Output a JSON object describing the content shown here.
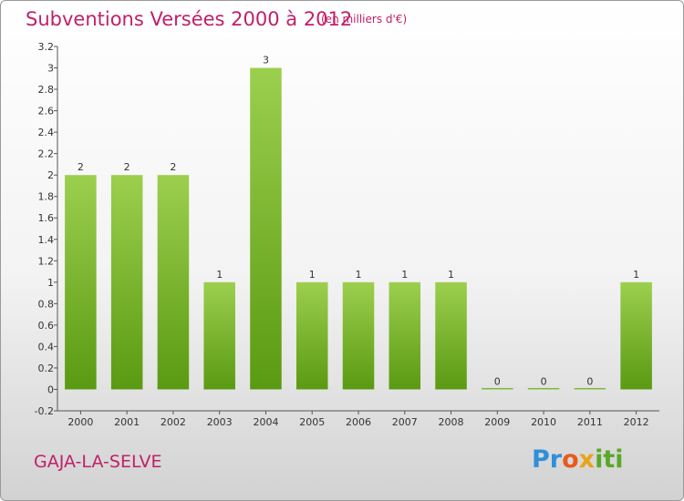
{
  "page": {
    "title": "Subventions Versées 2000 à 2012",
    "unit_note": "(en milliers d'€)",
    "commune": "GAJA-LA-SELVE",
    "logo": {
      "p": "Pr",
      "o": "o",
      "x": "x",
      "iti": "iti"
    }
  },
  "chart_data": {
    "type": "bar",
    "title": "Subventions Versées 2000 à 2012",
    "subtitle": "(en milliers d'€)",
    "categories": [
      "2000",
      "2001",
      "2002",
      "2003",
      "2004",
      "2005",
      "2006",
      "2007",
      "2008",
      "2009",
      "2010",
      "2011",
      "2012"
    ],
    "values": [
      2,
      2,
      2,
      1,
      3,
      1,
      1,
      1,
      1,
      0,
      0,
      0,
      1
    ],
    "data_labels": [
      "2",
      "2",
      "2",
      "1",
      "3",
      "1",
      "1",
      "1",
      "1",
      "0",
      "0",
      "0",
      "1"
    ],
    "ylim": [
      -0.2,
      3.2
    ],
    "yticks": [
      -0.2,
      0,
      0.2,
      0.4,
      0.6,
      0.8,
      1,
      1.2,
      1.4,
      1.6,
      1.8,
      2,
      2.2,
      2.4,
      2.6,
      2.8,
      3,
      3.2
    ],
    "ytick_labels": [
      "-0.2",
      "0",
      "0.2",
      "0.4",
      "0.6",
      "0.8",
      "1",
      "1.2",
      "1.4",
      "1.6",
      "1.8",
      "2",
      "2.2",
      "2.4",
      "2.6",
      "2.8",
      "3",
      "3.2"
    ],
    "grid": false,
    "bar_color_top": "#9ccf4e",
    "bar_color_bottom": "#5a9a12"
  }
}
